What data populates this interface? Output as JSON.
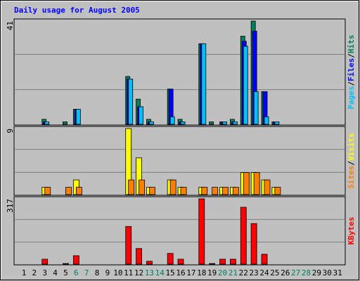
{
  "chart_data": [
    {
      "type": "bar",
      "title": "Daily usage for August 2005",
      "categories": [
        1,
        2,
        3,
        4,
        5,
        6,
        7,
        8,
        9,
        10,
        11,
        12,
        13,
        14,
        15,
        16,
        17,
        18,
        19,
        20,
        21,
        22,
        23,
        24,
        25,
        26,
        27,
        28,
        29,
        30,
        31
      ],
      "weekend_days": [
        6,
        7,
        13,
        14,
        20,
        21,
        27,
        28
      ],
      "weekend_color": "#00805c",
      "weekday_color": "#000000",
      "legend_separator": "/",
      "ylim": [
        0,
        41
      ],
      "yticks": [
        41
      ],
      "series": [
        {
          "name": "Hits",
          "color": "#00805c",
          "values": [
            0,
            0,
            2,
            0,
            1,
            6,
            0,
            0,
            0,
            0,
            19,
            10,
            2,
            0,
            14,
            2,
            0,
            32,
            1,
            1,
            2,
            35,
            41,
            13,
            1,
            0,
            0,
            0,
            0,
            0,
            0
          ]
        },
        {
          "name": "Files",
          "color": "#0000ff",
          "values": [
            0,
            0,
            1,
            0,
            0,
            6,
            0,
            0,
            0,
            0,
            18,
            7,
            1,
            0,
            14,
            1,
            0,
            32,
            0,
            1,
            1,
            33,
            37,
            13,
            1,
            0,
            0,
            0,
            0,
            0,
            0
          ]
        },
        {
          "name": "Pages",
          "color": "#00c0ff",
          "values": [
            0,
            0,
            1,
            0,
            0,
            6,
            0,
            0,
            0,
            0,
            18,
            7,
            1,
            0,
            3,
            1,
            0,
            32,
            0,
            1,
            1,
            31,
            13,
            3,
            1,
            0,
            0,
            0,
            0,
            0,
            0
          ]
        }
      ]
    },
    {
      "type": "bar",
      "legend_separator": "/",
      "ylim": [
        0,
        9
      ],
      "yticks": [
        9
      ],
      "series": [
        {
          "name": "Visits",
          "color": "#ffff00",
          "values": [
            0,
            0,
            1,
            0,
            0,
            2,
            0,
            0,
            0,
            0,
            9,
            5,
            1,
            0,
            2,
            1,
            0,
            1,
            0,
            1,
            1,
            3,
            3,
            2,
            1,
            0,
            0,
            0,
            0,
            0,
            0
          ]
        },
        {
          "name": "Sites",
          "color": "#ff8000",
          "values": [
            0,
            0,
            1,
            0,
            1,
            1,
            0,
            0,
            0,
            0,
            2,
            2,
            1,
            0,
            2,
            1,
            0,
            1,
            1,
            1,
            1,
            3,
            3,
            2,
            1,
            0,
            0,
            0,
            0,
            0,
            0
          ]
        }
      ]
    },
    {
      "type": "bar",
      "ylim": [
        0,
        317
      ],
      "yticks": [
        317
      ],
      "series": [
        {
          "name": "KBytes",
          "color": "#ff0000",
          "values": [
            0,
            0,
            24,
            0,
            3,
            41,
            0,
            0,
            0,
            0,
            183,
            76,
            14,
            0,
            52,
            24,
            0,
            317,
            3,
            24,
            24,
            276,
            197,
            48,
            0,
            0,
            0,
            0,
            0,
            0,
            0
          ]
        }
      ]
    }
  ]
}
